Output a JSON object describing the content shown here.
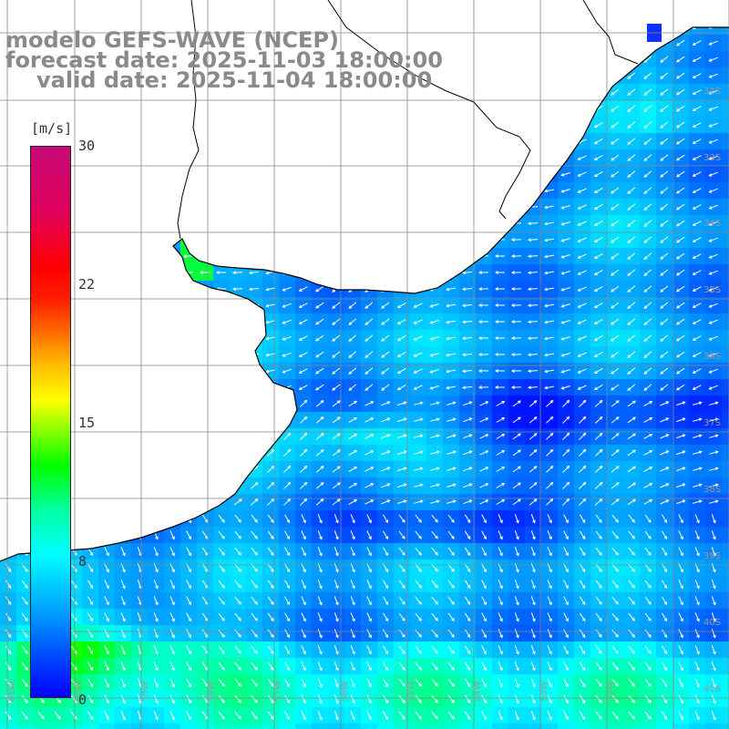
{
  "title": {
    "line1": "modelo GEFS-WAVE (NCEP)",
    "line2": "forecast date: 2025-11-03 18:00:00",
    "line3": "valid date: 2025-11-04 18:00:00"
  },
  "colorbar": {
    "unit": "[m/s]",
    "ticks": [
      "30",
      "22",
      "15",
      "8",
      "0"
    ],
    "colors": [
      "#0000ff",
      "#00ffff",
      "#00ff00",
      "#ffff00",
      "#ff0000",
      "#c80a78"
    ]
  },
  "map": {
    "lat_labels": [
      "32S",
      "33S",
      "34S",
      "35S",
      "36S",
      "37S",
      "38S",
      "39S",
      "40S",
      "41S"
    ],
    "lon_labels": [
      "61W",
      "60W",
      "59W",
      "58W",
      "57W",
      "56W",
      "55W",
      "54W",
      "53W",
      "52W"
    ],
    "wind_direction": "predominantly from the east/north-east near the coast, south-westerly offshore to the south",
    "colors": {
      "land": "#ffffff",
      "grid": "#888888",
      "coast": "#000000",
      "arrow": "#ffffff"
    }
  }
}
